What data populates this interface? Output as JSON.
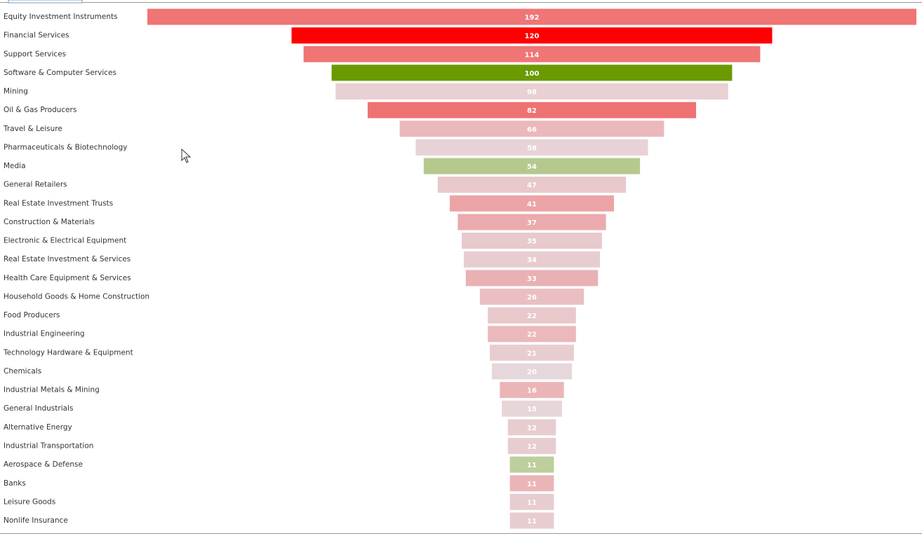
{
  "chart_data": {
    "type": "funnel",
    "categories": [
      "Equity Investment Instruments",
      "Financial Services",
      "Support Services",
      "Software & Computer Services",
      "Mining",
      "Oil & Gas Producers",
      "Travel & Leisure",
      "Pharmaceuticals & Biotechnology",
      "Media",
      "General Retailers",
      "Real Estate Investment Trusts",
      "Construction & Materials",
      "Electronic & Electrical Equipment",
      "Real Estate Investment & Services",
      "Health Care Equipment & Services",
      "Household Goods & Home Construction",
      "Food Producers",
      "Industrial Engineering",
      "Technology Hardware & Equipment",
      "Chemicals",
      "Industrial Metals & Mining",
      "General Industrials",
      "Alternative Energy",
      "Industrial Transportation",
      "Aerospace & Defense",
      "Banks",
      "Leisure Goods",
      "Nonlife Insurance"
    ],
    "values": [
      192,
      120,
      114,
      100,
      98,
      82,
      66,
      58,
      54,
      47,
      41,
      37,
      35,
      34,
      33,
      26,
      22,
      22,
      21,
      20,
      16,
      15,
      12,
      12,
      11,
      11,
      11,
      11
    ],
    "colors": [
      "#f07575",
      "#ff0000",
      "#f07575",
      "#6a9a00",
      "#e8d0d3",
      "#ef7272",
      "#ebb8bb",
      "#e8d2d5",
      "#b5c98e",
      "#e8c8cb",
      "#eca3a6",
      "#ebaaad",
      "#e8c9cc",
      "#e8cdd0",
      "#eab1b4",
      "#e9bfc2",
      "#e8c8cb",
      "#ebb8bb",
      "#e8cdd0",
      "#e6d8da",
      "#ebb5b8",
      "#e6d6d8",
      "#e8cdd0",
      "#e8cdd0",
      "#bccf9c",
      "#ebb5b8",
      "#e8cdd0",
      "#e8cdd0"
    ]
  }
}
